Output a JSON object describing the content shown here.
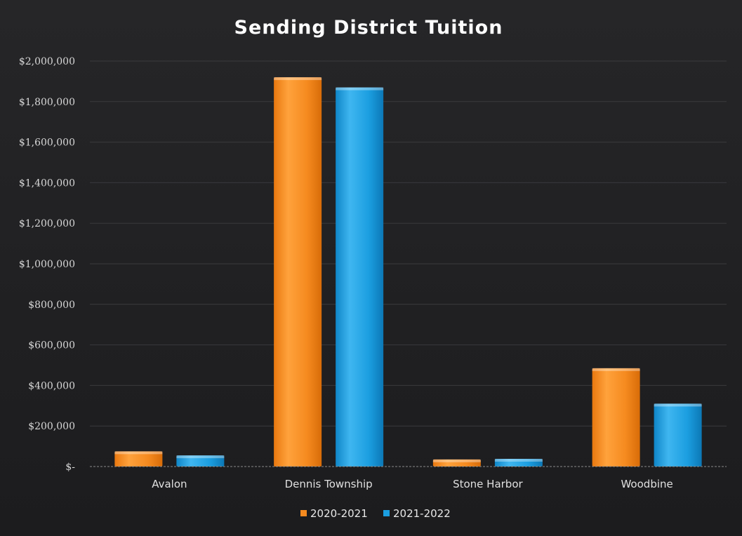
{
  "chart_data": {
    "type": "bar",
    "title": "Sending District Tuition",
    "categories": [
      "Avalon",
      "Dennis Township",
      "Stone Harbor",
      "Woodbine"
    ],
    "series": [
      {
        "name": "2020-2021",
        "values": [
          75000,
          1920000,
          35000,
          485000
        ],
        "color": "#f58a1f"
      },
      {
        "name": "2021-2022",
        "values": [
          55000,
          1870000,
          38000,
          310000
        ],
        "color": "#1b9ee0"
      }
    ],
    "ylim": [
      0,
      2000000
    ],
    "y_ticks": [
      {
        "value": 0,
        "label": "$-"
      },
      {
        "value": 200000,
        "label": "$200,000"
      },
      {
        "value": 400000,
        "label": "$400,000"
      },
      {
        "value": 600000,
        "label": "$600,000"
      },
      {
        "value": 800000,
        "label": "$800,000"
      },
      {
        "value": 1000000,
        "label": "$1,000,000"
      },
      {
        "value": 1200000,
        "label": "$1,200,000"
      },
      {
        "value": 1400000,
        "label": "$1,400,000"
      },
      {
        "value": 1600000,
        "label": "$1,600,000"
      },
      {
        "value": 1800000,
        "label": "$1,800,000"
      },
      {
        "value": 2000000,
        "label": "$2,000,000"
      }
    ],
    "grid": true,
    "legend_position": "bottom"
  }
}
